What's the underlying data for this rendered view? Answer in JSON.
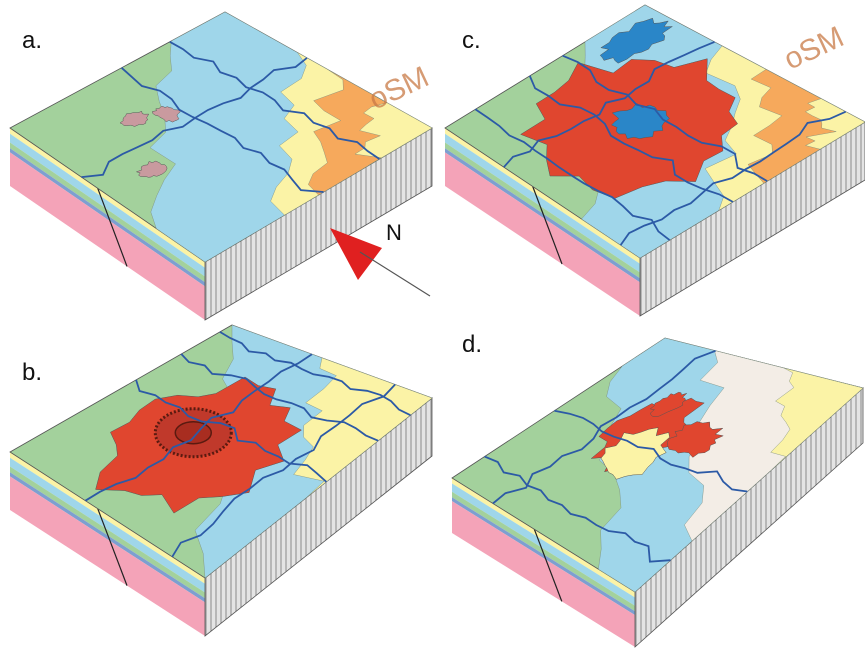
{
  "panels": [
    {
      "label": "a.",
      "annotation": "oSM"
    },
    {
      "label": "b."
    },
    {
      "label": "c.",
      "annotation": "oSM"
    },
    {
      "label": "d."
    }
  ],
  "compass": {
    "label": "N"
  }
}
